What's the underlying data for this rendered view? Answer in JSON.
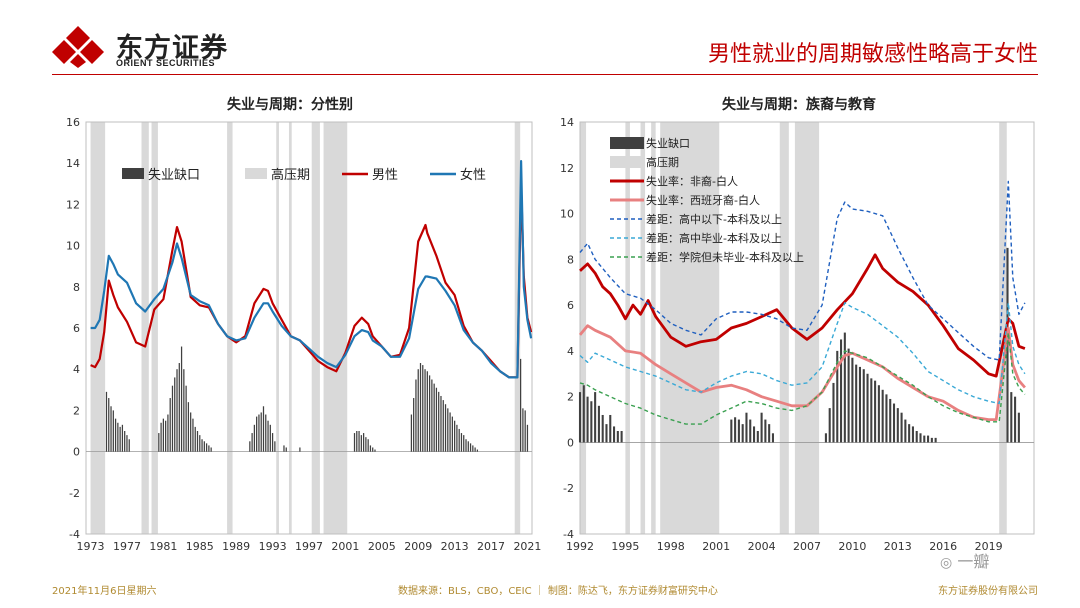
{
  "header": {
    "logo_cn": "东方证券",
    "logo_en": "ORIENT SECURITIES",
    "headline": "男性就业的周期敏感性略高于女性"
  },
  "footer": {
    "date": "2021年11月6日星期六",
    "source": "数据来源：BLS，CBO，CEIC ｜ 制图：陈达飞，东方证券财富研究中心",
    "company": "东方证券股份有限公司"
  },
  "watermark": "一瓣",
  "colors": {
    "brand_red": "#c00000",
    "gap_bar": "#404040",
    "recession": "#d9d9d9",
    "male": "#c00000",
    "female": "#1f77b4",
    "black_white": "#c00000",
    "hispanic_white": "#e88080",
    "hs_below": "#1f5fbf",
    "hs_grad": "#3aa9d6",
    "some_college": "#3aa050"
  },
  "chart_data": [
    {
      "type": "line",
      "title": "失业与周期：分性别",
      "ylim": [
        -4,
        16
      ],
      "yticks": [
        -4,
        -2,
        0,
        2,
        4,
        6,
        8,
        10,
        12,
        14,
        16
      ],
      "xlim": [
        1972.5,
        2021.5
      ],
      "xticks": [
        1973,
        1977,
        1981,
        1985,
        1989,
        1993,
        1997,
        2001,
        2005,
        2009,
        2013,
        2017,
        2021
      ],
      "legend": [
        "失业缺口",
        "高压期",
        "男性",
        "女性"
      ],
      "recessions": [
        [
          1973.0,
          1974.6
        ],
        [
          1978.6,
          1979.4
        ],
        [
          1979.7,
          1980.4
        ],
        [
          1988.0,
          1988.6
        ],
        [
          1993.4,
          1993.7
        ],
        [
          1994.8,
          1995.1
        ],
        [
          1997.3,
          1998.2
        ],
        [
          1998.6,
          2001.2
        ],
        [
          2019.6,
          2020.2
        ]
      ],
      "gap_bars": {
        "x": [
          1974.75,
          1975.0,
          1975.25,
          1975.5,
          1975.75,
          1976.0,
          1976.25,
          1976.5,
          1976.75,
          1977.0,
          1977.25,
          1980.5,
          1980.75,
          1981.0,
          1981.25,
          1981.5,
          1981.75,
          1982.0,
          1982.25,
          1982.5,
          1982.75,
          1983.0,
          1983.25,
          1983.5,
          1983.75,
          1984.0,
          1984.25,
          1984.5,
          1984.75,
          1985.0,
          1985.25,
          1985.5,
          1985.75,
          1986.0,
          1986.25,
          1990.5,
          1990.75,
          1991.0,
          1991.25,
          1991.5,
          1991.75,
          1992.0,
          1992.25,
          1992.5,
          1992.75,
          1993.0,
          1993.25,
          1994.25,
          1994.5,
          1996.0,
          2002.0,
          2002.25,
          2002.5,
          2002.75,
          2003.0,
          2003.25,
          2003.5,
          2003.75,
          2004.0,
          2004.25,
          2008.25,
          2008.5,
          2008.75,
          2009.0,
          2009.25,
          2009.5,
          2009.75,
          2010.0,
          2010.25,
          2010.5,
          2010.75,
          2011.0,
          2011.25,
          2011.5,
          2011.75,
          2012.0,
          2012.25,
          2012.5,
          2012.75,
          2013.0,
          2013.25,
          2013.5,
          2013.75,
          2014.0,
          2014.25,
          2014.5,
          2014.75,
          2015.0,
          2015.25,
          2015.5,
          2020.25,
          2020.5,
          2020.75,
          2021.0
        ],
        "values": [
          2.9,
          2.6,
          2.2,
          2.0,
          1.6,
          1.4,
          1.2,
          1.3,
          1.0,
          0.8,
          0.6,
          0.9,
          1.4,
          1.6,
          1.5,
          1.8,
          2.6,
          3.2,
          3.6,
          4.0,
          4.3,
          5.1,
          4.0,
          3.2,
          2.4,
          1.9,
          1.6,
          1.2,
          1.0,
          0.8,
          0.6,
          0.5,
          0.4,
          0.3,
          0.2,
          0.5,
          0.9,
          1.3,
          1.7,
          1.8,
          1.9,
          2.2,
          1.8,
          1.5,
          1.3,
          0.9,
          0.5,
          0.3,
          0.2,
          0.2,
          0.9,
          1.0,
          1.0,
          0.8,
          0.9,
          0.7,
          0.6,
          0.3,
          0.2,
          0.1,
          1.8,
          2.6,
          3.5,
          4.0,
          4.3,
          4.2,
          4.0,
          3.9,
          3.7,
          3.5,
          3.3,
          3.1,
          2.9,
          2.7,
          2.5,
          2.3,
          2.1,
          1.9,
          1.7,
          1.5,
          1.3,
          1.1,
          0.9,
          0.8,
          0.6,
          0.5,
          0.4,
          0.3,
          0.2,
          0.1,
          4.5,
          2.1,
          2.0,
          1.3
        ]
      },
      "series": [
        {
          "name": "男性",
          "x": [
            1973.0,
            1973.5,
            1974.0,
            1974.5,
            1975.0,
            1975.5,
            1976.0,
            1977.0,
            1978.0,
            1979.0,
            1980.0,
            1981.0,
            1982.0,
            1982.5,
            1983.0,
            1984.0,
            1985.0,
            1986.0,
            1987.0,
            1988.0,
            1989.0,
            1990.0,
            1991.0,
            1992.0,
            1992.5,
            1993.0,
            1994.0,
            1995.0,
            1996.0,
            1997.0,
            1998.0,
            1999.0,
            2000.0,
            2001.0,
            2002.0,
            2002.8,
            2003.5,
            2004.0,
            2005.0,
            2006.0,
            2007.0,
            2008.0,
            2009.0,
            2009.8,
            2010.0,
            2011.0,
            2012.0,
            2013.0,
            2014.0,
            2015.0,
            2016.0,
            2017.0,
            2018.0,
            2019.0,
            2019.9,
            2020.3,
            2020.6,
            2021.0,
            2021.4
          ],
          "values": [
            4.2,
            4.1,
            4.5,
            5.8,
            8.3,
            7.6,
            7.0,
            6.3,
            5.3,
            5.1,
            6.9,
            7.4,
            9.8,
            10.9,
            10.2,
            7.5,
            7.1,
            7.0,
            6.2,
            5.6,
            5.3,
            5.6,
            7.2,
            7.9,
            7.8,
            7.2,
            6.4,
            5.6,
            5.4,
            4.9,
            4.4,
            4.1,
            3.9,
            4.8,
            6.1,
            6.5,
            6.2,
            5.6,
            5.1,
            4.6,
            4.7,
            6.0,
            10.2,
            11.0,
            10.6,
            9.5,
            8.2,
            7.6,
            6.1,
            5.3,
            4.9,
            4.4,
            3.9,
            3.6,
            3.6,
            13.0,
            8.5,
            6.5,
            5.8
          ]
        },
        {
          "name": "女性",
          "x": [
            1973.0,
            1973.5,
            1974.0,
            1974.5,
            1975.0,
            1975.5,
            1976.0,
            1977.0,
            1978.0,
            1979.0,
            1980.0,
            1981.0,
            1982.0,
            1982.5,
            1983.0,
            1984.0,
            1985.0,
            1986.0,
            1987.0,
            1988.0,
            1989.0,
            1990.0,
            1991.0,
            1992.0,
            1992.5,
            1993.0,
            1994.0,
            1995.0,
            1996.0,
            1997.0,
            1998.0,
            1999.0,
            2000.0,
            2001.0,
            2002.0,
            2002.8,
            2003.5,
            2004.0,
            2005.0,
            2006.0,
            2007.0,
            2008.0,
            2009.0,
            2009.8,
            2010.0,
            2011.0,
            2012.0,
            2013.0,
            2014.0,
            2015.0,
            2016.0,
            2017.0,
            2018.0,
            2019.0,
            2019.9,
            2020.3,
            2020.6,
            2021.0,
            2021.4
          ],
          "values": [
            6.0,
            6.0,
            6.4,
            7.8,
            9.5,
            9.1,
            8.6,
            8.2,
            7.2,
            6.8,
            7.4,
            7.9,
            9.2,
            10.1,
            9.4,
            7.6,
            7.3,
            7.1,
            6.2,
            5.6,
            5.4,
            5.5,
            6.5,
            7.2,
            7.2,
            6.8,
            6.1,
            5.6,
            5.4,
            5.0,
            4.6,
            4.3,
            4.1,
            4.7,
            5.6,
            5.9,
            5.8,
            5.4,
            5.1,
            4.6,
            4.6,
            5.5,
            7.9,
            8.5,
            8.5,
            8.4,
            7.8,
            7.1,
            5.9,
            5.3,
            4.9,
            4.3,
            3.9,
            3.6,
            3.6,
            14.1,
            8.0,
            6.4,
            5.5
          ]
        }
      ]
    },
    {
      "type": "line",
      "title": "失业与周期：族裔与教育",
      "ylim": [
        -4,
        14
      ],
      "yticks": [
        -4,
        -2,
        0,
        2,
        4,
        6,
        8,
        10,
        12,
        14
      ],
      "xlim": [
        1992,
        2022
      ],
      "xticks": [
        1992,
        1995,
        1998,
        2001,
        2004,
        2007,
        2010,
        2013,
        2016,
        2019
      ],
      "legend": [
        "失业缺口",
        "高压期",
        "失业率：非裔-白人",
        "失业率：西班牙裔-白人",
        "差距：高中以下-本科及以上",
        "差距：高中毕业-本科及以上",
        "差距：学院但未毕业-本科及以上"
      ],
      "recessions": [
        [
          1992.0,
          1992.4
        ],
        [
          1995.0,
          1995.3
        ],
        [
          1996.0,
          1996.3
        ],
        [
          1996.7,
          1997.0
        ],
        [
          1997.3,
          2001.2
        ],
        [
          2005.2,
          2005.8
        ],
        [
          2006.2,
          2007.8
        ],
        [
          2019.7,
          2020.2
        ]
      ],
      "gap_bars": {
        "x": [
          1992.0,
          1992.25,
          1992.5,
          1992.75,
          1993.0,
          1993.25,
          1993.5,
          1993.75,
          1994.0,
          1994.25,
          1994.5,
          1994.75,
          2002.0,
          2002.25,
          2002.5,
          2002.75,
          2003.0,
          2003.25,
          2003.5,
          2003.75,
          2004.0,
          2004.25,
          2004.5,
          2004.75,
          2008.25,
          2008.5,
          2008.75,
          2009.0,
          2009.25,
          2009.5,
          2009.75,
          2010.0,
          2010.25,
          2010.5,
          2010.75,
          2011.0,
          2011.25,
          2011.5,
          2011.75,
          2012.0,
          2012.25,
          2012.5,
          2012.75,
          2013.0,
          2013.25,
          2013.5,
          2013.75,
          2014.0,
          2014.25,
          2014.5,
          2014.75,
          2015.0,
          2015.25,
          2015.5,
          2020.25,
          2020.5,
          2020.75,
          2021.0
        ],
        "values": [
          2.2,
          2.5,
          2.0,
          1.8,
          2.2,
          1.6,
          1.2,
          0.8,
          1.2,
          0.7,
          0.5,
          0.5,
          1.0,
          1.1,
          1.0,
          0.8,
          1.3,
          1.0,
          0.7,
          0.5,
          1.3,
          1.0,
          0.8,
          0.4,
          0.4,
          1.5,
          2.6,
          4.0,
          4.5,
          4.8,
          4.1,
          3.7,
          3.4,
          3.3,
          3.2,
          3.0,
          2.8,
          2.7,
          2.5,
          2.3,
          2.1,
          1.9,
          1.7,
          1.5,
          1.3,
          1.0,
          0.8,
          0.7,
          0.5,
          0.4,
          0.3,
          0.3,
          0.2,
          0.2,
          8.5,
          2.2,
          2.0,
          1.3
        ]
      },
      "series": [
        {
          "name": "失业率：非裔-白人",
          "x": [
            1992.0,
            1992.5,
            1993.0,
            1993.5,
            1994.0,
            1994.5,
            1995.0,
            1995.5,
            1996.0,
            1996.5,
            1997.0,
            1998.0,
            1999.0,
            2000.0,
            2001.0,
            2002.0,
            2003.0,
            2004.0,
            2005.0,
            2006.0,
            2007.0,
            2008.0,
            2009.0,
            2010.0,
            2011.0,
            2011.5,
            2012.0,
            2013.0,
            2014.0,
            2015.0,
            2016.0,
            2017.0,
            2018.0,
            2019.0,
            2019.5,
            2020.3,
            2020.6,
            2021.0,
            2021.4
          ],
          "values": [
            7.5,
            7.8,
            7.4,
            6.8,
            6.5,
            6.0,
            5.4,
            6.0,
            5.6,
            6.2,
            5.5,
            4.6,
            4.2,
            4.4,
            4.5,
            5.0,
            5.2,
            5.5,
            5.8,
            5.0,
            4.5,
            5.0,
            5.8,
            6.5,
            7.6,
            8.2,
            7.6,
            7.0,
            6.6,
            6.0,
            5.1,
            4.1,
            3.6,
            3.0,
            2.9,
            5.4,
            5.2,
            4.2,
            4.1
          ]
        },
        {
          "name": "失业率：西班牙裔-白人",
          "x": [
            1992.0,
            1992.5,
            1993.0,
            1994.0,
            1995.0,
            1996.0,
            1997.0,
            1998.0,
            1999.0,
            2000.0,
            2001.0,
            2002.0,
            2003.0,
            2004.0,
            2005.0,
            2006.0,
            2007.0,
            2008.0,
            2009.0,
            2009.5,
            2010.0,
            2011.0,
            2012.0,
            2013.0,
            2014.0,
            2015.0,
            2016.0,
            2017.0,
            2018.0,
            2019.0,
            2019.5,
            2020.3,
            2020.6,
            2021.0,
            2021.4
          ],
          "values": [
            4.7,
            5.1,
            4.9,
            4.6,
            4.0,
            3.9,
            3.4,
            3.0,
            2.6,
            2.2,
            2.4,
            2.5,
            2.3,
            2.0,
            1.8,
            1.6,
            1.6,
            2.2,
            3.3,
            3.8,
            3.9,
            3.6,
            3.3,
            2.8,
            2.4,
            2.0,
            1.8,
            1.4,
            1.1,
            1.0,
            1.0,
            5.0,
            3.4,
            2.7,
            2.4
          ]
        },
        {
          "name": "差距：高中以下-本科及以上",
          "x": [
            1992.0,
            1992.5,
            1993.0,
            1994.0,
            1995.0,
            1996.0,
            1997.0,
            1998.0,
            1999.0,
            2000.0,
            2001.0,
            2002.0,
            2003.0,
            2004.0,
            2005.0,
            2006.0,
            2007.0,
            2008.0,
            2009.0,
            2009.5,
            2010.0,
            2011.0,
            2012.0,
            2013.0,
            2014.0,
            2015.0,
            2016.0,
            2017.0,
            2018.0,
            2019.0,
            2019.7,
            2020.3,
            2020.6,
            2021.0,
            2021.4
          ],
          "values": [
            8.3,
            8.7,
            8.0,
            7.2,
            6.5,
            6.3,
            5.8,
            5.2,
            4.9,
            4.7,
            5.4,
            5.7,
            5.7,
            5.6,
            5.4,
            5.0,
            4.9,
            6.0,
            9.8,
            10.5,
            10.2,
            10.1,
            9.9,
            8.5,
            7.2,
            6.0,
            5.4,
            4.8,
            4.2,
            3.7,
            3.6,
            11.4,
            7.2,
            5.6,
            6.1
          ]
        },
        {
          "name": "差距：高中毕业-本科及以上",
          "x": [
            1992.0,
            1992.5,
            1993.0,
            1994.0,
            1995.0,
            1996.0,
            1997.0,
            1998.0,
            1999.0,
            2000.0,
            2001.0,
            2002.0,
            2003.0,
            2004.0,
            2005.0,
            2006.0,
            2007.0,
            2008.0,
            2009.0,
            2009.5,
            2010.0,
            2011.0,
            2012.0,
            2013.0,
            2014.0,
            2015.0,
            2016.0,
            2017.0,
            2018.0,
            2019.0,
            2019.7,
            2020.3,
            2020.6,
            2021.0,
            2021.4
          ],
          "values": [
            3.8,
            3.5,
            3.9,
            3.6,
            3.3,
            3.1,
            2.9,
            2.6,
            2.3,
            2.2,
            2.6,
            2.9,
            3.1,
            3.0,
            2.7,
            2.5,
            2.6,
            3.3,
            5.2,
            6.1,
            5.9,
            5.6,
            5.1,
            4.6,
            3.9,
            3.1,
            2.7,
            2.3,
            2.0,
            1.8,
            1.7,
            6.1,
            4.2,
            3.4,
            3.0
          ]
        },
        {
          "name": "差距：学院但未毕业-本科及以上",
          "x": [
            1992.0,
            1992.5,
            1993.0,
            1994.0,
            1995.0,
            1996.0,
            1997.0,
            1998.0,
            1999.0,
            2000.0,
            2001.0,
            2002.0,
            2003.0,
            2004.0,
            2005.0,
            2006.0,
            2007.0,
            2008.0,
            2009.0,
            2009.5,
            2010.0,
            2011.0,
            2012.0,
            2013.0,
            2014.0,
            2015.0,
            2016.0,
            2017.0,
            2018.0,
            2019.0,
            2019.7,
            2020.3,
            2020.6,
            2021.0,
            2021.4
          ],
          "values": [
            2.6,
            2.5,
            2.3,
            2.0,
            1.7,
            1.5,
            1.2,
            1.0,
            0.8,
            0.8,
            1.2,
            1.5,
            1.8,
            1.7,
            1.5,
            1.4,
            1.6,
            2.2,
            3.5,
            4.0,
            3.9,
            3.7,
            3.3,
            2.9,
            2.5,
            2.0,
            1.6,
            1.3,
            1.1,
            0.9,
            0.9,
            4.8,
            3.0,
            2.4,
            2.1
          ]
        }
      ]
    }
  ]
}
